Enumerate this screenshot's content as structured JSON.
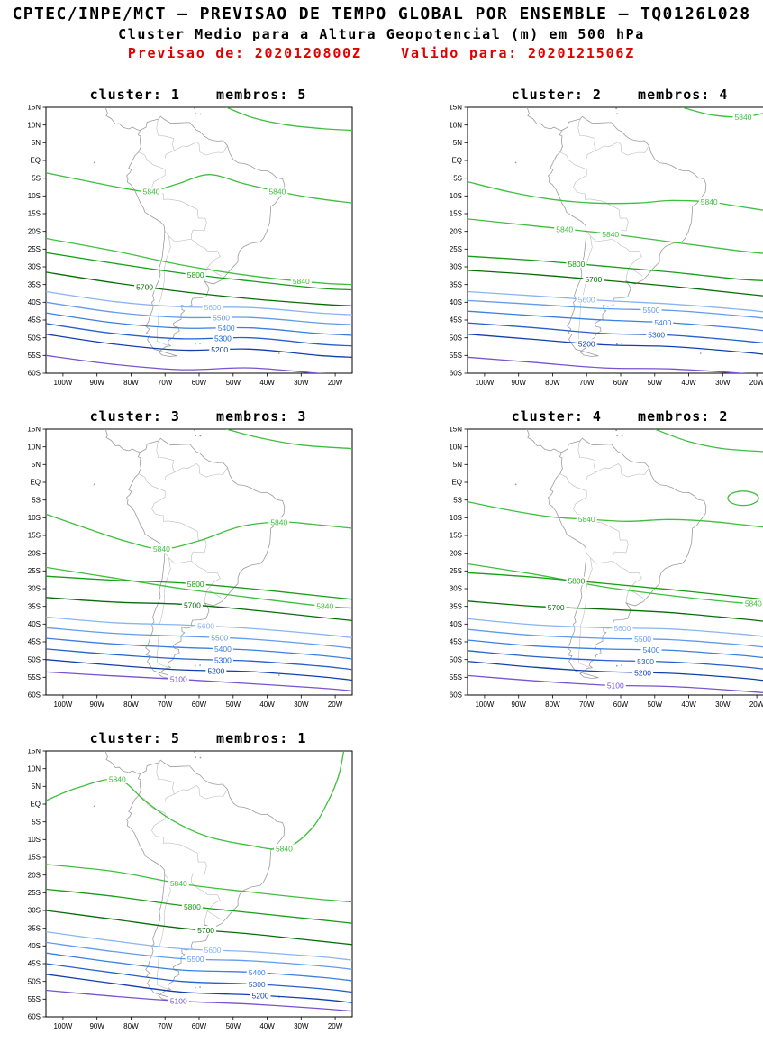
{
  "header": {
    "line1": "CPTEC/INPE/MCT — PREVISAO DE TEMPO GLOBAL POR ENSEMBLE — TQ0126L028",
    "line2": "Cluster Medio para a Altura Geopotencial (m) em 500 hPa",
    "line3": "Previsao de: 2020120800Z    Valido para: 2020121506Z",
    "line3_color": "#e00000"
  },
  "axes": {
    "lat_labels": [
      "15N",
      "10N",
      "5N",
      "EQ",
      "5S",
      "10S",
      "15S",
      "20S",
      "25S",
      "30S",
      "35S",
      "40S",
      "45S",
      "50S",
      "55S",
      "60S"
    ],
    "lon_labels": [
      "100W",
      "90W",
      "80W",
      "70W",
      "60W",
      "50W",
      "40W",
      "30W",
      "20W"
    ]
  },
  "levels": {
    "5840": "#3fbf3f",
    "5800": "#169e16",
    "5700": "#066d06",
    "5600": "#8ab4f0",
    "5500": "#639bec",
    "5400": "#3b7fe0",
    "5300": "#2560cc",
    "5200": "#123fae",
    "5100": "#7a52d2"
  },
  "contour_lons": [
    -105,
    -85,
    -65,
    -45,
    -25,
    -15
  ],
  "panels": [
    {
      "title": "cluster: 1    membros: 5",
      "cluster": 1,
      "membros": 5,
      "tropical": {
        "points": [
          [
            -105,
            -3.5
          ],
          [
            -92,
            -6
          ],
          [
            -80,
            -8.2
          ],
          [
            -74,
            -8.7
          ],
          [
            -66,
            -6.5
          ],
          [
            -57,
            -4
          ],
          [
            -47,
            -6.5
          ],
          [
            -37,
            -8.7
          ],
          [
            -27,
            -10.5
          ],
          [
            -15,
            -12
          ]
        ],
        "label_lons": [
          -74,
          -37
        ]
      },
      "arcs": [
        {
          "points": [
            [
              -52,
              15
            ],
            [
              -44,
              12
            ],
            [
              -34,
              10
            ],
            [
              -24,
              9
            ],
            [
              -15,
              8.5
            ]
          ],
          "label_lons": []
        }
      ],
      "loops": [],
      "contours": [
        {
          "level": "5840",
          "lats": [
            -22,
            -25.5,
            -29.5,
            -32.5,
            -34.5,
            -35
          ],
          "label_lons": [
            -30
          ]
        },
        {
          "level": "5800",
          "lats": [
            -26,
            -29,
            -31.8,
            -34,
            -36,
            -36.5
          ],
          "label_lons": [
            -61
          ]
        },
        {
          "level": "5700",
          "lats": [
            -31.5,
            -34.5,
            -37,
            -39,
            -40.5,
            -41
          ],
          "label_lons": [
            -76
          ]
        },
        {
          "level": "5600",
          "lats": [
            -37,
            -39.8,
            -41.3,
            -41.5,
            -43,
            -43.5
          ],
          "label_lons": [
            -56
          ]
        },
        {
          "level": "5500",
          "lats": [
            -40,
            -42.8,
            -44.3,
            -44.3,
            -45.8,
            -46.3
          ],
          "label_lons": [
            -53.5
          ]
        },
        {
          "level": "5400",
          "lats": [
            -43,
            -45.8,
            -47.3,
            -47.2,
            -48.8,
            -49.3
          ],
          "label_lons": [
            -52
          ]
        },
        {
          "level": "5300",
          "lats": [
            -46,
            -48.8,
            -50.3,
            -50,
            -51.8,
            -52.3
          ],
          "label_lons": [
            -53
          ]
        },
        {
          "level": "5200",
          "lats": [
            -49,
            -51.8,
            -53.5,
            -53.2,
            -55,
            -55.5
          ],
          "label_lons": [
            -54
          ]
        },
        {
          "level": "5100",
          "lats": [
            -55,
            -57.5,
            -59,
            -58.5,
            -60,
            -60.5
          ],
          "label_lons": []
        }
      ]
    },
    {
      "title": "cluster: 2    membros: 4",
      "cluster": 2,
      "membros": 4,
      "tropical": {
        "points": [
          [
            -105,
            -6
          ],
          [
            -92,
            -9
          ],
          [
            -80,
            -11
          ],
          [
            -68,
            -12
          ],
          [
            -55,
            -12
          ],
          [
            -45,
            -11.3
          ],
          [
            -34,
            -11.7
          ],
          [
            -25,
            -13
          ],
          [
            -15,
            -14.5
          ]
        ],
        "label_lons": [
          -34
        ]
      },
      "arcs": [
        {
          "points": [
            [
              -42,
              15
            ],
            [
              -33,
              12.8
            ],
            [
              -24,
              12.3
            ],
            [
              -17,
              13.5
            ],
            [
              -15,
              14
            ]
          ],
          "label_lons": [
            -24
          ]
        }
      ],
      "loops": [],
      "contours": [
        {
          "level": "5840",
          "lats": [
            -16.5,
            -18.5,
            -20.5,
            -23,
            -25.5,
            -26.5
          ],
          "label_lons": [
            -76.5,
            -63
          ]
        },
        {
          "level": "5800",
          "lats": [
            -27,
            -28.2,
            -29.8,
            -31.5,
            -33.5,
            -34
          ],
          "label_lons": [
            -73
          ]
        },
        {
          "level": "5700",
          "lats": [
            -31,
            -32.2,
            -33.8,
            -35.5,
            -37.5,
            -38.5
          ],
          "label_lons": [
            -68
          ]
        },
        {
          "level": "5600",
          "lats": [
            -37,
            -38.2,
            -39.5,
            -40.5,
            -42,
            -43
          ],
          "label_lons": [
            -70
          ]
        },
        {
          "level": "5500",
          "lats": [
            -39.5,
            -40.6,
            -41.8,
            -42.3,
            -43.8,
            -44.8
          ],
          "label_lons": [
            -51
          ]
        },
        {
          "level": "5400",
          "lats": [
            -42.5,
            -43.8,
            -45,
            -45.8,
            -47.3,
            -48.3
          ],
          "label_lons": [
            -47.6
          ]
        },
        {
          "level": "5300",
          "lats": [
            -45.8,
            -47.2,
            -48.8,
            -49.3,
            -50.8,
            -51.8
          ],
          "label_lons": [
            -49.5
          ]
        },
        {
          "level": "5200",
          "lats": [
            -49,
            -50.5,
            -52,
            -52.5,
            -54,
            -55
          ],
          "label_lons": [
            -70
          ]
        },
        {
          "level": "5100",
          "lats": [
            -55.5,
            -57,
            -58.5,
            -58.8,
            -60,
            -61
          ],
          "label_lons": []
        }
      ]
    },
    {
      "title": "cluster: 3    membros: 3",
      "cluster": 3,
      "membros": 3,
      "tropical": {
        "points": [
          [
            -105,
            -9
          ],
          [
            -93,
            -13
          ],
          [
            -82,
            -16.5
          ],
          [
            -71,
            -18.8
          ],
          [
            -60,
            -16.5
          ],
          [
            -48,
            -12.5
          ],
          [
            -36.5,
            -11.2
          ],
          [
            -27,
            -11.8
          ],
          [
            -15,
            -13
          ]
        ],
        "label_lons": [
          -71,
          -36.5
        ]
      },
      "arcs": [
        {
          "points": [
            [
              -52,
              15
            ],
            [
              -42,
              12.5
            ],
            [
              -30,
              10.5
            ],
            [
              -15,
              9.5
            ]
          ],
          "label_lons": []
        }
      ],
      "loops": [],
      "contours": [
        {
          "level": "5840",
          "lats": [
            -24,
            -27,
            -30,
            -32.5,
            -34.8,
            -35.5
          ],
          "label_lons": [
            -23
          ]
        },
        {
          "level": "5800",
          "lats": [
            -26.5,
            -27.6,
            -28.4,
            -30,
            -32,
            -33
          ],
          "label_lons": [
            -61
          ]
        },
        {
          "level": "5700",
          "lats": [
            -32.5,
            -33.8,
            -34.4,
            -36,
            -38,
            -39
          ],
          "label_lons": [
            -62
          ]
        },
        {
          "level": "5600",
          "lats": [
            -38,
            -39.6,
            -40.2,
            -41.2,
            -42.8,
            -43.8
          ],
          "label_lons": [
            -58
          ]
        },
        {
          "level": "5500",
          "lats": [
            -41,
            -42.6,
            -43.4,
            -44.2,
            -45.8,
            -46.8
          ],
          "label_lons": [
            -54
          ]
        },
        {
          "level": "5400",
          "lats": [
            -44,
            -45.6,
            -46.6,
            -47.3,
            -48.8,
            -49.8
          ],
          "label_lons": [
            -53
          ]
        },
        {
          "level": "5300",
          "lats": [
            -47,
            -48.6,
            -49.8,
            -50.4,
            -51.8,
            -52.8
          ],
          "label_lons": [
            -53
          ]
        },
        {
          "level": "5200",
          "lats": [
            -50,
            -51.6,
            -52.9,
            -53.4,
            -54.8,
            -55.8
          ],
          "label_lons": [
            -55
          ]
        },
        {
          "level": "5100",
          "lats": [
            -53.5,
            -54.6,
            -55.6,
            -56.8,
            -58,
            -58.8
          ],
          "label_lons": [
            -66
          ]
        }
      ]
    },
    {
      "title": "cluster: 4    membros: 2",
      "cluster": 4,
      "membros": 2,
      "tropical": {
        "points": [
          [
            -105,
            -5.5
          ],
          [
            -92,
            -8
          ],
          [
            -80,
            -9.8
          ],
          [
            -70,
            -10.4
          ],
          [
            -58,
            -11
          ],
          [
            -46,
            -10.5
          ],
          [
            -34,
            -11
          ],
          [
            -24,
            -12
          ],
          [
            -15,
            -13
          ]
        ],
        "label_lons": [
          -70
        ]
      },
      "arcs": [
        {
          "points": [
            [
              -50,
              15
            ],
            [
              -40,
              11.5
            ],
            [
              -30,
              9.5
            ],
            [
              -15,
              8.5
            ]
          ],
          "label_lons": []
        }
      ],
      "loops": [
        {
          "lon": -24,
          "lat": -4.5,
          "rx": 4.5,
          "ry": 2
        }
      ],
      "contours": [
        {
          "level": "5840",
          "lats": [
            -23,
            -26,
            -29.5,
            -32,
            -34,
            -34.5
          ],
          "label_lons": [
            -21
          ]
        },
        {
          "level": "5800",
          "lats": [
            -25.5,
            -26.8,
            -28.5,
            -30.3,
            -32.3,
            -33.3
          ],
          "label_lons": [
            -73
          ]
        },
        {
          "level": "5700",
          "lats": [
            -33.5,
            -35,
            -35.8,
            -36.8,
            -38.5,
            -39.5
          ],
          "label_lons": [
            -79
          ]
        },
        {
          "level": "5600",
          "lats": [
            -38.5,
            -40.2,
            -41,
            -41.4,
            -42.8,
            -43.8
          ],
          "label_lons": [
            -59.5
          ]
        },
        {
          "level": "5500",
          "lats": [
            -41.5,
            -43.2,
            -44,
            -44.4,
            -45.8,
            -46.8
          ],
          "label_lons": [
            -53.5
          ]
        },
        {
          "level": "5400",
          "lats": [
            -44.5,
            -46.2,
            -47,
            -47.4,
            -48.8,
            -49.8
          ],
          "label_lons": [
            -51
          ]
        },
        {
          "level": "5300",
          "lats": [
            -47.5,
            -49.2,
            -50.2,
            -50.7,
            -52,
            -53
          ],
          "label_lons": [
            -52.7
          ]
        },
        {
          "level": "5200",
          "lats": [
            -50.5,
            -52.2,
            -53.4,
            -53.9,
            -55.2,
            -56.2
          ],
          "label_lons": [
            -53.5
          ]
        },
        {
          "level": "5100",
          "lats": [
            -54.5,
            -56,
            -57.2,
            -57.6,
            -58.8,
            -59.6
          ],
          "label_lons": [
            -61.5
          ]
        }
      ]
    },
    {
      "title": "cluster: 5    membros: 1",
      "cluster": 5,
      "membros": 1,
      "tropical": {
        "points": [
          [
            -105,
            1
          ],
          [
            -96,
            4.5
          ],
          [
            -84,
            7
          ],
          [
            -76,
            1
          ],
          [
            -68,
            -4.5
          ],
          [
            -58,
            -9
          ],
          [
            -46,
            -11.5
          ],
          [
            -35,
            -12.5
          ],
          [
            -27,
            -7
          ],
          [
            -22,
            1
          ],
          [
            -19,
            8
          ],
          [
            -17.5,
            15
          ]
        ],
        "label_lons": [
          -84,
          -35
        ]
      },
      "arcs": [],
      "loops": [],
      "contours": [
        {
          "level": "5840",
          "lats": [
            -17,
            -19,
            -22.5,
            -24.8,
            -26.8,
            -27.6
          ],
          "label_lons": [
            -66
          ]
        },
        {
          "level": "5800",
          "lats": [
            -24,
            -26,
            -28.6,
            -30.6,
            -32.6,
            -33.6
          ],
          "label_lons": [
            -62
          ]
        },
        {
          "level": "5700",
          "lats": [
            -30,
            -32.5,
            -35,
            -36.6,
            -38.6,
            -39.6
          ],
          "label_lons": [
            -58
          ]
        },
        {
          "level": "5600",
          "lats": [
            -36,
            -38.6,
            -40.8,
            -41.6,
            -43,
            -44
          ],
          "label_lons": [
            -56
          ]
        },
        {
          "level": "5500",
          "lats": [
            -39,
            -41.6,
            -43.6,
            -44.2,
            -45.6,
            -46.6
          ],
          "label_lons": [
            -61
          ]
        },
        {
          "level": "5400",
          "lats": [
            -42,
            -44.6,
            -46.8,
            -47.4,
            -48.8,
            -49.8
          ],
          "label_lons": [
            -43
          ]
        },
        {
          "level": "5300",
          "lats": [
            -45,
            -47.6,
            -50,
            -50.7,
            -52,
            -53
          ],
          "label_lons": [
            -43
          ]
        },
        {
          "level": "5200",
          "lats": [
            -48,
            -50.6,
            -53,
            -53.8,
            -55,
            -56
          ],
          "label_lons": [
            -42
          ]
        },
        {
          "level": "5100",
          "lats": [
            -52.5,
            -54.2,
            -55.6,
            -56.4,
            -57.6,
            -58.4
          ],
          "label_lons": [
            -66
          ]
        }
      ]
    }
  ],
  "chart_data": {
    "type": "contour_map",
    "title": "Cluster Medio para a Altura Geopotencial (m) em 500 hPa",
    "source_line": "CPTEC/INPE/MCT — PREVISAO DE TEMPO GLOBAL POR ENSEMBLE — TQ0126L028",
    "init_time": "2020120800Z",
    "valid_time": "2020121506Z",
    "lon_domain_deg": [
      -105,
      -15
    ],
    "lat_domain_deg": [
      -60,
      15
    ],
    "lat_ticks": [
      "15N",
      "10N",
      "5N",
      "EQ",
      "5S",
      "10S",
      "15S",
      "20S",
      "25S",
      "30S",
      "35S",
      "40S",
      "45S",
      "50S",
      "55S",
      "60S"
    ],
    "lon_ticks": [
      "100W",
      "90W",
      "80W",
      "70W",
      "60W",
      "50W",
      "40W",
      "30W",
      "20W"
    ],
    "contour_levels_m": [
      5100,
      5200,
      5300,
      5400,
      5500,
      5600,
      5700,
      5800,
      5840
    ],
    "panels": [
      {
        "cluster": 1,
        "membros": 5
      },
      {
        "cluster": 2,
        "membros": 4
      },
      {
        "cluster": 3,
        "membros": 3
      },
      {
        "cluster": 4,
        "membros": 2
      },
      {
        "cluster": 5,
        "membros": 1
      }
    ]
  }
}
